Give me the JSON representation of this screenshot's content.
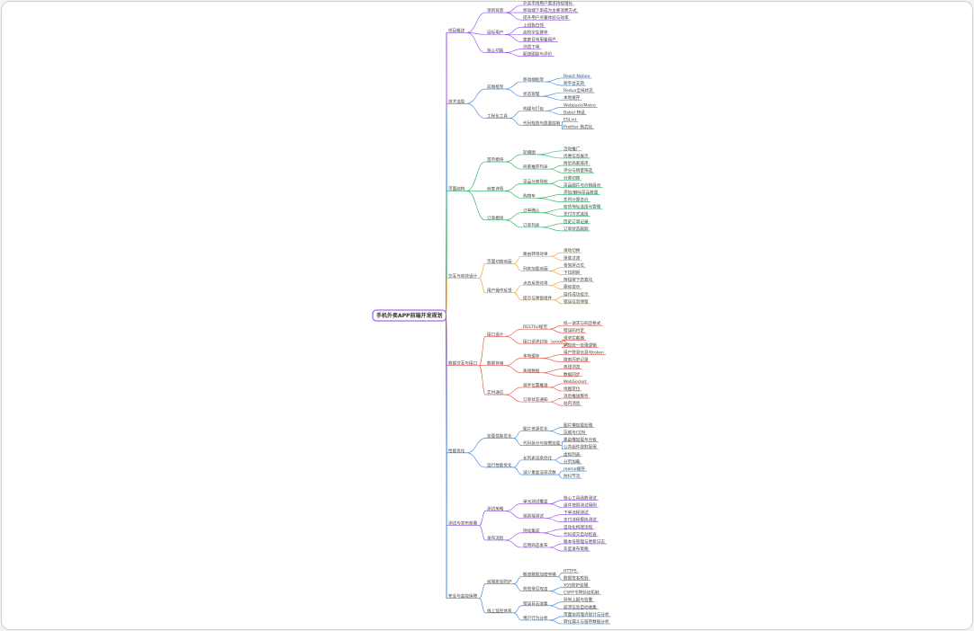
{
  "tree": {
    "label": "手机外卖APP前端开发规划",
    "children": [
      {
        "label": "项目概述",
        "color": "#8e44ec",
        "children": [
          {
            "label": "项目背景",
            "children": [
              {
                "label": "外卖市场用户需求持续增长"
              },
              {
                "label": "移动端下单成为主要消费方式"
              },
              {
                "label": "提升用户点餐体验与效率"
              }
            ]
          },
          {
            "label": "目标用户",
            "children": [
              {
                "label": "上班族白领"
              },
              {
                "label": "高校学生群体"
              },
              {
                "label": "家庭日常用餐用户"
              }
            ]
          },
          {
            "label": "核心功能",
            "children": [
              {
                "label": "浏览下单"
              },
              {
                "label": "配送跟踪与评价"
              }
            ]
          }
        ]
      },
      {
        "label": "技术选型",
        "color": "#2f7fe0",
        "children": [
          {
            "label": "前端框架",
            "children": [
              {
                "label": "移动端框架",
                "children": [
                  {
                    "label": "React Native"
                  },
                  {
                    "label": "跨平台支持"
                  }
                ]
              },
              {
                "label": "状态管理",
                "children": [
                  {
                    "label": "Redux全局状态"
                  },
                  {
                    "label": "本地缓存"
                  }
                ]
              }
            ]
          },
          {
            "label": "工程化工具",
            "children": [
              {
                "label": "构建与打包",
                "children": [
                  {
                    "label": "Webpack/Metro"
                  },
                  {
                    "label": "Babel 转译"
                  }
                ]
              },
              {
                "label": "代码规范与质量控制",
                "children": [
                  {
                    "label": "ESLint"
                  },
                  {
                    "label": "Prettier 格式化"
                  }
                ]
              }
            ]
          }
        ]
      },
      {
        "label": "页面结构",
        "color": "#1fae5b",
        "children": [
          {
            "label": "首页模块",
            "children": [
              {
                "label": "轮播图",
                "children": [
                  {
                    "label": "活动推广"
                  },
                  {
                    "label": "优惠信息展示"
                  }
                ]
              },
              {
                "label": "商家推荐列表",
                "children": [
                  {
                    "label": "附近商家排序"
                  },
                  {
                    "label": "评分与销量筛选"
                  }
                ]
              }
            ]
          },
          {
            "label": "商家详情",
            "children": [
              {
                "label": "菜品分类导航",
                "children": [
                  {
                    "label": "分类切换"
                  },
                  {
                    "label": "菜品图片与价格展示"
                  }
                ]
              },
              {
                "label": "购物车",
                "children": [
                  {
                    "label": "添加/删除菜品数量"
                  },
                  {
                    "label": "实时计算总价"
                  }
                ]
              }
            ]
          },
          {
            "label": "订单模块",
            "children": [
              {
                "label": "订单确认",
                "children": [
                  {
                    "label": "收货地址选择与管理"
                  },
                  {
                    "label": "支付方式选择"
                  }
                ]
              },
              {
                "label": "订单列表",
                "children": [
                  {
                    "label": "历史订单记录"
                  },
                  {
                    "label": "订单状态跟踪"
                  }
                ]
              }
            ]
          }
        ]
      },
      {
        "label": "交互与动效设计",
        "color": "#f39c12",
        "children": [
          {
            "label": "页面切换动画",
            "children": [
              {
                "label": "路由转场效果",
                "children": [
                  {
                    "label": "滑动切换"
                  },
                  {
                    "label": "渐变过渡"
                  }
                ]
              },
              {
                "label": "列表加载动画",
                "children": [
                  {
                    "label": "骨架屏占位"
                  },
                  {
                    "label": "下拉刷新"
                  }
                ]
              }
            ]
          },
          {
            "label": "用户操作反馈",
            "children": [
              {
                "label": "点击反馈效果",
                "children": [
                  {
                    "label": "按钮按下态变化"
                  },
                  {
                    "label": "震动提示"
                  }
                ]
              },
              {
                "label": "提示与弹窗组件",
                "children": [
                  {
                    "label": "操作成功提示"
                  },
                  {
                    "label": "错误信息弹窗"
                  }
                ]
              }
            ]
          }
        ]
      },
      {
        "label": "数据交互与接口",
        "color": "#e74c3c",
        "children": [
          {
            "label": "接口设计",
            "children": [
              {
                "label": "RESTful规范",
                "children": [
                  {
                    "label": "统一请求与响应格式"
                  },
                  {
                    "label": "错误码约定"
                  }
                ]
              },
              {
                "label": "接口请求封装（axios）",
                "children": [
                  {
                    "label": "请求拦截器"
                  },
                  {
                    "label": "响应统一处理逻辑"
                  }
                ]
              }
            ]
          },
          {
            "label": "数据存储",
            "children": [
              {
                "label": "本地缓存",
                "children": [
                  {
                    "label": "用户登录信息与token"
                  },
                  {
                    "label": "搜索历史记录"
                  }
                ]
              },
              {
                "label": "离线数据",
                "children": [
                  {
                    "label": "离线浏览"
                  },
                  {
                    "label": "数据同步"
                  }
                ]
              }
            ]
          },
          {
            "label": "实时通信",
            "children": [
              {
                "label": "骑手位置推送",
                "children": [
                  {
                    "label": "WebSocket"
                  },
                  {
                    "label": "地图定位"
                  }
                ]
              },
              {
                "label": "订单状态通知",
                "children": [
                  {
                    "label": "消息推送服务"
                  },
                  {
                    "label": "站内消息"
                  }
                ]
              }
            ]
          }
        ]
      },
      {
        "label": "性能优化",
        "color": "#2f7fe0",
        "children": [
          {
            "label": "加载性能优化",
            "children": [
              {
                "label": "图片资源优化",
                "children": [
                  {
                    "label": "图片懒加载处理"
                  },
                  {
                    "label": "压缩与CDN"
                  }
                ]
              },
              {
                "label": "代码拆分与按需加载",
                "children": [
                  {
                    "label": "路由懒加载与分包"
                  },
                  {
                    "label": "公共组件提取复用"
                  }
                ]
              }
            ]
          },
          {
            "label": "运行性能优化",
            "children": [
              {
                "label": "长列表渲染优化",
                "children": [
                  {
                    "label": "虚拟列表"
                  },
                  {
                    "label": "分页加载"
                  }
                ]
              },
              {
                "label": "减少重复渲染次数",
                "children": [
                  {
                    "label": "memo缓存"
                  },
                  {
                    "label": "防抖节流"
                  }
                ]
              }
            ]
          }
        ]
      },
      {
        "label": "测试与发布部署",
        "color": "#8e44ec",
        "children": [
          {
            "label": "测试策略",
            "children": [
              {
                "label": "单元测试覆盖",
                "children": [
                  {
                    "label": "核心工具函数测试"
                  },
                  {
                    "label": "组件快照测试用例"
                  }
                ]
              },
              {
                "label": "端到端测试",
                "children": [
                  {
                    "label": "下单流程测试"
                  },
                  {
                    "label": "支付流程模拟测试"
                  }
                ]
              }
            ]
          },
          {
            "label": "发布流程",
            "children": [
              {
                "label": "持续集成",
                "children": [
                  {
                    "label": "自动化构建流程"
                  },
                  {
                    "label": "代码提交自动检查"
                  }
                ]
              },
              {
                "label": "应用商店发布",
                "children": [
                  {
                    "label": "版本号管理与更新日志"
                  },
                  {
                    "label": "灰度发布策略"
                  }
                ]
              }
            ]
          }
        ]
      },
      {
        "label": "安全与监控保障",
        "color": "#2f7fe0",
        "children": [
          {
            "label": "前端安全防护",
            "children": [
              {
                "label": "敏感数据加密传输",
                "children": [
                  {
                    "label": "HTTPS"
                  },
                  {
                    "label": "数据签名校验"
                  }
                ]
              },
              {
                "label": "防范常见攻击",
                "children": [
                  {
                    "label": "XSS防护处理"
                  },
                  {
                    "label": "CSRF令牌验证机制"
                  }
                ]
              }
            ]
          },
          {
            "label": "线上监控体系",
            "children": [
              {
                "label": "错误日志收集",
                "children": [
                  {
                    "label": "异常上报与告警"
                  },
                  {
                    "label": "崩溃信息自动收集"
                  }
                ]
              },
              {
                "label": "用户行为分析",
                "children": [
                  {
                    "label": "页面访问埋点统计与分析"
                  },
                  {
                    "label": "转化漏斗与留存数据分析"
                  }
                ]
              }
            ]
          }
        ]
      }
    ]
  }
}
